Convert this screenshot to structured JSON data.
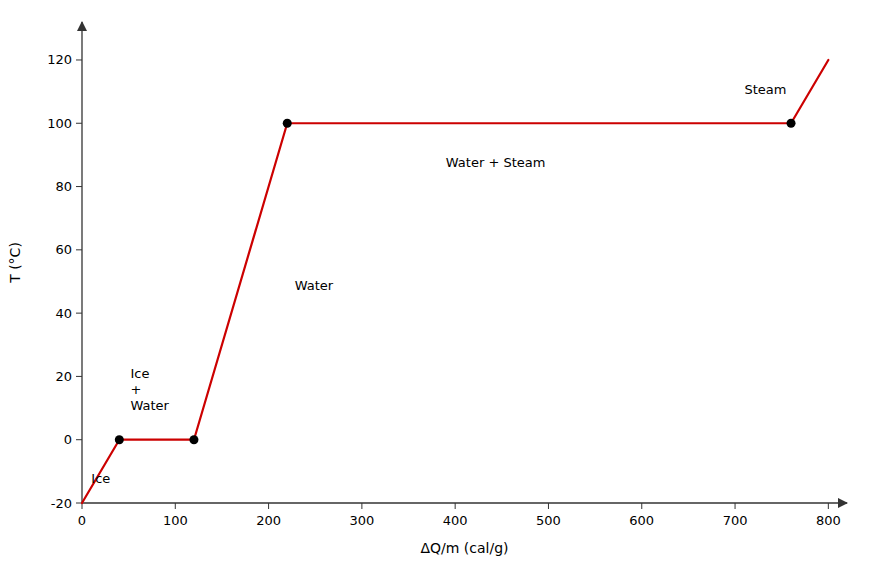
{
  "chart_data": {
    "type": "line",
    "x_label": "ΔQ/m (cal/g)",
    "y_label": "T (°C)",
    "xlim": [
      0,
      820
    ],
    "ylim": [
      -20,
      132
    ],
    "xticks": [
      0,
      100,
      200,
      300,
      400,
      500,
      600,
      700,
      800
    ],
    "yticks": [
      -20,
      0,
      20,
      40,
      60,
      80,
      100,
      120
    ],
    "series": [
      {
        "type": "line",
        "color": "#cc0000",
        "x": [
          0,
          40,
          120,
          220,
          760,
          800
        ],
        "values": [
          -20,
          0,
          0,
          100,
          100,
          120
        ]
      },
      {
        "type": "scatter",
        "color": "#000000",
        "marker": "circle",
        "x": [
          40,
          120,
          220,
          760
        ],
        "values": [
          0,
          0,
          100,
          100
        ]
      }
    ],
    "annotations": [
      {
        "text": "Ice",
        "x": 10,
        "y": -15
      },
      {
        "text": "Ice\n+\nWater",
        "x": 52,
        "y": 8
      },
      {
        "text": "Water",
        "x": 228,
        "y": 46
      },
      {
        "text": "Water + Steam",
        "x": 390,
        "y": 85
      },
      {
        "text": "Steam",
        "x": 710,
        "y": 108
      }
    ]
  }
}
